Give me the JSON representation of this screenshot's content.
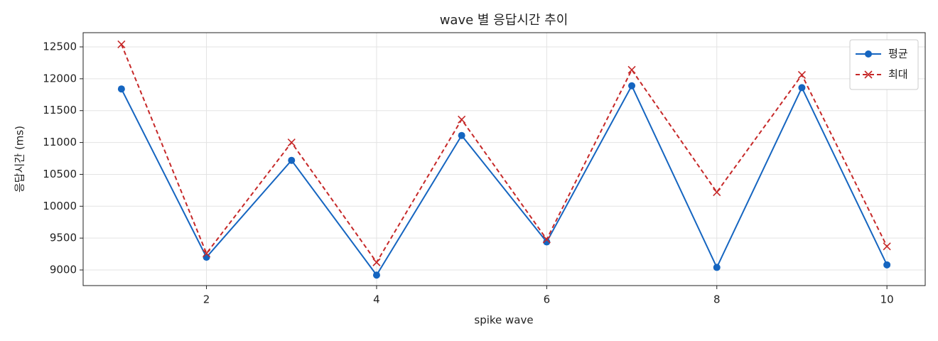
{
  "chart_data": {
    "type": "line",
    "title": "wave 별 응답시간 추이",
    "x_label": "spike wave",
    "y_label": "응답시간 (ms)",
    "x": [
      1,
      2,
      3,
      4,
      5,
      6,
      7,
      8,
      9,
      10
    ],
    "series": [
      {
        "name": "평균",
        "color": "#1565c0",
        "line_style": "solid",
        "marker": "o",
        "values": [
          11840,
          9200,
          10720,
          8920,
          11110,
          9440,
          11890,
          9040,
          11860,
          9080
        ]
      },
      {
        "name": "최대",
        "color": "#c62828",
        "line_style": "dashed",
        "marker": "x",
        "values": [
          12540,
          9260,
          11000,
          9120,
          11360,
          9480,
          12140,
          10220,
          12060,
          9370
        ]
      }
    ],
    "xlim": [
      0.55,
      10.45
    ],
    "xticks": [
      2,
      4,
      6,
      8,
      10
    ],
    "ylim": [
      8755,
      12723
    ],
    "yticks": [
      9000,
      9500,
      10000,
      10500,
      11000,
      11500,
      12000,
      12500
    ],
    "grid": true,
    "legend": "upper right"
  }
}
